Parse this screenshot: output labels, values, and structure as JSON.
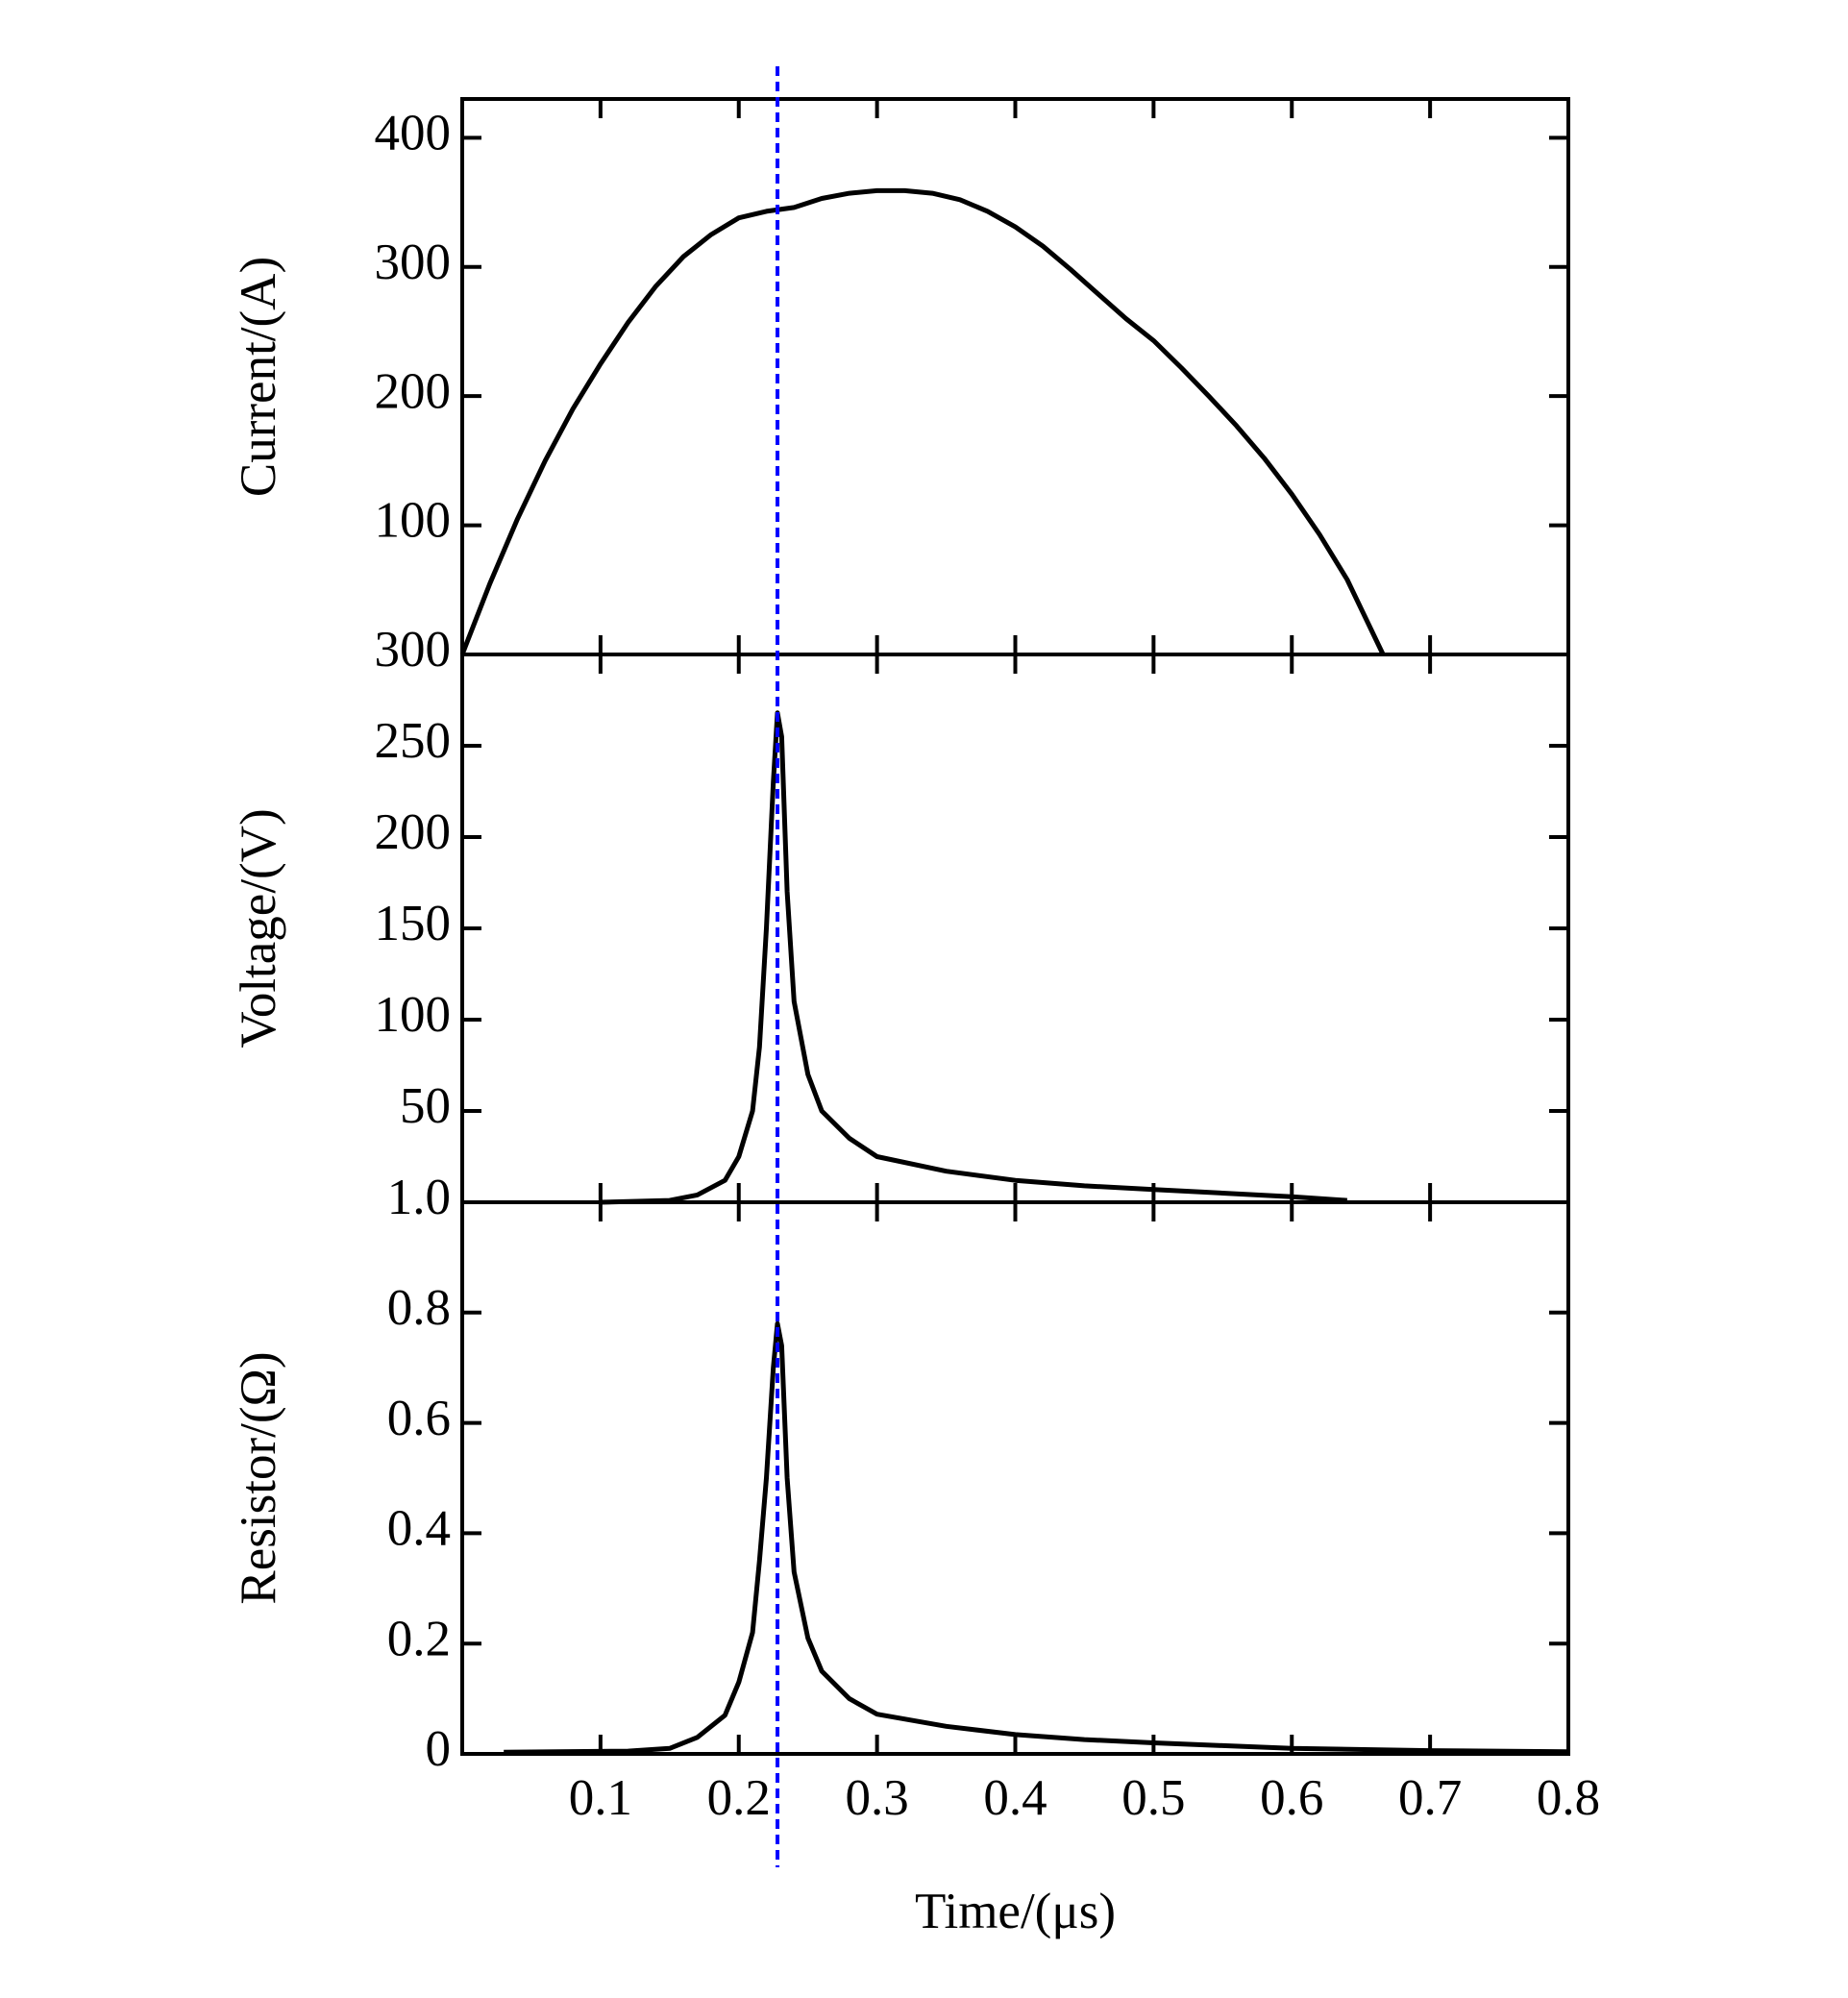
{
  "chart_data": [
    {
      "type": "line",
      "y_label": "Current/(A)",
      "ylim": [
        0,
        430
      ],
      "yticks": [
        100,
        200,
        300,
        400
      ],
      "xlim": [
        0,
        0.8
      ],
      "series": [
        {
          "color": "#000000",
          "x": [
            0,
            0.02,
            0.04,
            0.06,
            0.08,
            0.1,
            0.12,
            0.14,
            0.16,
            0.18,
            0.2,
            0.22,
            0.24,
            0.26,
            0.28,
            0.3,
            0.32,
            0.34,
            0.36,
            0.38,
            0.4,
            0.42,
            0.44,
            0.46,
            0.48,
            0.5,
            0.52,
            0.54,
            0.56,
            0.58,
            0.6,
            0.62,
            0.64,
            0.666
          ],
          "values": [
            0,
            55,
            105,
            150,
            190,
            225,
            257,
            285,
            308,
            325,
            338,
            343,
            346,
            353,
            357,
            359,
            359,
            357,
            352,
            343,
            331,
            316,
            298,
            279,
            260,
            243,
            222,
            200,
            177,
            152,
            124,
            93,
            58,
            0
          ]
        }
      ]
    },
    {
      "type": "line",
      "y_label": "Voltage/(V)",
      "ylim": [
        0,
        300
      ],
      "yticks": [
        50,
        100,
        150,
        200,
        250,
        300
      ],
      "xlim": [
        0,
        0.8
      ],
      "series": [
        {
          "color": "#000000",
          "x": [
            0.1,
            0.15,
            0.17,
            0.19,
            0.2,
            0.21,
            0.215,
            0.22,
            0.225,
            0.228,
            0.231,
            0.235,
            0.24,
            0.25,
            0.26,
            0.28,
            0.3,
            0.35,
            0.4,
            0.45,
            0.5,
            0.55,
            0.6,
            0.64
          ],
          "values": [
            0,
            1,
            4,
            12,
            25,
            50,
            85,
            150,
            230,
            268,
            255,
            170,
            110,
            70,
            50,
            35,
            25,
            17,
            12,
            9,
            7,
            5,
            3,
            1
          ]
        }
      ]
    },
    {
      "type": "line",
      "y_label": "Resistor/(Ω)",
      "x_label": "Time/(μs)",
      "ylim": [
        0,
        1
      ],
      "xlim": [
        0,
        0.8
      ],
      "yticks": [
        0,
        0.2,
        0.4,
        0.6,
        0.8,
        {
          "value": 1,
          "label": "1.0"
        }
      ],
      "xticks": [
        0.1,
        0.2,
        0.3,
        0.4,
        0.5,
        0.6,
        0.7,
        0.8
      ],
      "series": [
        {
          "color": "#000000",
          "x": [
            0.03,
            0.12,
            0.15,
            0.17,
            0.19,
            0.2,
            0.21,
            0.215,
            0.22,
            0.225,
            0.228,
            0.231,
            0.235,
            0.24,
            0.25,
            0.26,
            0.28,
            0.3,
            0.35,
            0.4,
            0.45,
            0.5,
            0.55,
            0.6,
            0.7,
            0.8
          ],
          "values": [
            0.003,
            0.005,
            0.01,
            0.03,
            0.07,
            0.13,
            0.22,
            0.35,
            0.5,
            0.7,
            0.78,
            0.74,
            0.5,
            0.33,
            0.21,
            0.15,
            0.1,
            0.072,
            0.05,
            0.035,
            0.026,
            0.02,
            0.015,
            0.01,
            0.006,
            0.004
          ]
        }
      ]
    }
  ],
  "reference_line": {
    "x": 0.228,
    "color": "#0000ff"
  }
}
